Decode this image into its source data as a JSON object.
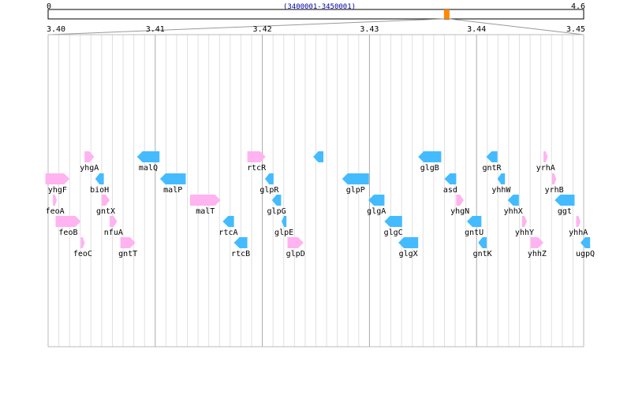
{
  "overview": {
    "start_label": "0",
    "end_label": "4.6",
    "range_label": "(3400001-3450001)",
    "min": 0,
    "max": 4.6,
    "window_start": 3.4,
    "window_end": 3.45
  },
  "axis": {
    "min": 3.4,
    "max": 3.45,
    "major_ticks": [
      "3.40",
      "3.41",
      "3.42",
      "3.43",
      "3.44",
      "3.45"
    ],
    "minor_per_major": 10
  },
  "colors": {
    "forward": "#ffb3f0",
    "reverse": "#44bbff",
    "marker": "#ff8800",
    "grid_minor": "#e0e0e0",
    "grid_major": "#aaaaaa"
  },
  "genes": [
    {
      "name": "yhgF",
      "start": 3.39975,
      "end": 3.402,
      "strand": "+",
      "row": 2
    },
    {
      "name": "feoA",
      "start": 3.40045,
      "end": 3.40075,
      "strand": "+",
      "row": 3
    },
    {
      "name": "feoB",
      "start": 3.4007,
      "end": 3.40305,
      "strand": "+",
      "row": 4
    },
    {
      "name": "feoC",
      "start": 3.40305,
      "end": 3.4033,
      "strand": "+",
      "row": 5
    },
    {
      "name": "yhgA",
      "start": 3.4034,
      "end": 3.4043,
      "strand": "+",
      "row": 1
    },
    {
      "name": "bioH",
      "start": 3.4044,
      "end": 3.4052,
      "strand": "-",
      "row": 2
    },
    {
      "name": "gntX",
      "start": 3.405,
      "end": 3.40575,
      "strand": "+",
      "row": 3
    },
    {
      "name": "nfuA",
      "start": 3.40575,
      "end": 3.40645,
      "strand": "+",
      "row": 4
    },
    {
      "name": "gntT",
      "start": 3.40675,
      "end": 3.40815,
      "strand": "+",
      "row": 5
    },
    {
      "name": "malQ",
      "start": 3.4083,
      "end": 3.4104,
      "strand": "-",
      "row": 1
    },
    {
      "name": "malP",
      "start": 3.41045,
      "end": 3.41285,
      "strand": "-",
      "row": 2
    },
    {
      "name": "malT",
      "start": 3.41325,
      "end": 3.4161,
      "strand": "+",
      "row": 3
    },
    {
      "name": "rtcA",
      "start": 3.4163,
      "end": 3.41735,
      "strand": "-",
      "row": 4
    },
    {
      "name": "rtcB",
      "start": 3.41735,
      "end": 3.4186,
      "strand": "-",
      "row": 5
    },
    {
      "name": "rtcR",
      "start": 3.4186,
      "end": 3.4203,
      "strand": "+",
      "row": 1
    },
    {
      "name": "glpR",
      "start": 3.42025,
      "end": 3.42105,
      "strand": "-",
      "row": 2
    },
    {
      "name": "glpG",
      "start": 3.4209,
      "end": 3.42175,
      "strand": "-",
      "row": 3
    },
    {
      "name": "glpE",
      "start": 3.4218,
      "end": 3.42225,
      "strand": "-",
      "row": 4
    },
    {
      "name": "glpD",
      "start": 3.42235,
      "end": 3.42385,
      "strand": "+",
      "row": 5
    },
    {
      "name": "",
      "start": 3.42475,
      "end": 3.4257,
      "strand": "-",
      "row": 1
    },
    {
      "name": "glpP",
      "start": 3.42745,
      "end": 3.42995,
      "strand": "-",
      "row": 2
    },
    {
      "name": "glgA",
      "start": 3.4299,
      "end": 3.4314,
      "strand": "-",
      "row": 3
    },
    {
      "name": "glgC",
      "start": 3.4314,
      "end": 3.43305,
      "strand": "-",
      "row": 4
    },
    {
      "name": "glgX",
      "start": 3.4327,
      "end": 3.43455,
      "strand": "-",
      "row": 5
    },
    {
      "name": "glgB",
      "start": 3.43455,
      "end": 3.4367,
      "strand": "-",
      "row": 1
    },
    {
      "name": "asd",
      "start": 3.437,
      "end": 3.4381,
      "strand": "-",
      "row": 2
    },
    {
      "name": "yhgN",
      "start": 3.4381,
      "end": 3.4388,
      "strand": "+",
      "row": 3
    },
    {
      "name": "gntU",
      "start": 3.4391,
      "end": 3.44045,
      "strand": "-",
      "row": 4
    },
    {
      "name": "gntK",
      "start": 3.44015,
      "end": 3.44095,
      "strand": "-",
      "row": 5
    },
    {
      "name": "gntR",
      "start": 3.4409,
      "end": 3.44195,
      "strand": "-",
      "row": 1
    },
    {
      "name": "yhhW",
      "start": 3.44195,
      "end": 3.44265,
      "strand": "-",
      "row": 2
    },
    {
      "name": "yhhX",
      "start": 3.4429,
      "end": 3.44395,
      "strand": "-",
      "row": 3
    },
    {
      "name": "yhhY",
      "start": 3.44425,
      "end": 3.4447,
      "strand": "+",
      "row": 4
    },
    {
      "name": "yhhZ",
      "start": 3.44505,
      "end": 3.44625,
      "strand": "+",
      "row": 5
    },
    {
      "name": "yrhA",
      "start": 3.44625,
      "end": 3.44665,
      "strand": "+",
      "row": 1
    },
    {
      "name": "yrhB",
      "start": 3.44705,
      "end": 3.44745,
      "strand": "+",
      "row": 2
    },
    {
      "name": "ggt",
      "start": 3.4473,
      "end": 3.44915,
      "strand": "-",
      "row": 3
    },
    {
      "name": "yhhA",
      "start": 3.4493,
      "end": 3.4497,
      "strand": "+",
      "row": 4
    },
    {
      "name": "ugpQ",
      "start": 3.4497,
      "end": 3.4506,
      "strand": "-",
      "row": 5
    }
  ]
}
